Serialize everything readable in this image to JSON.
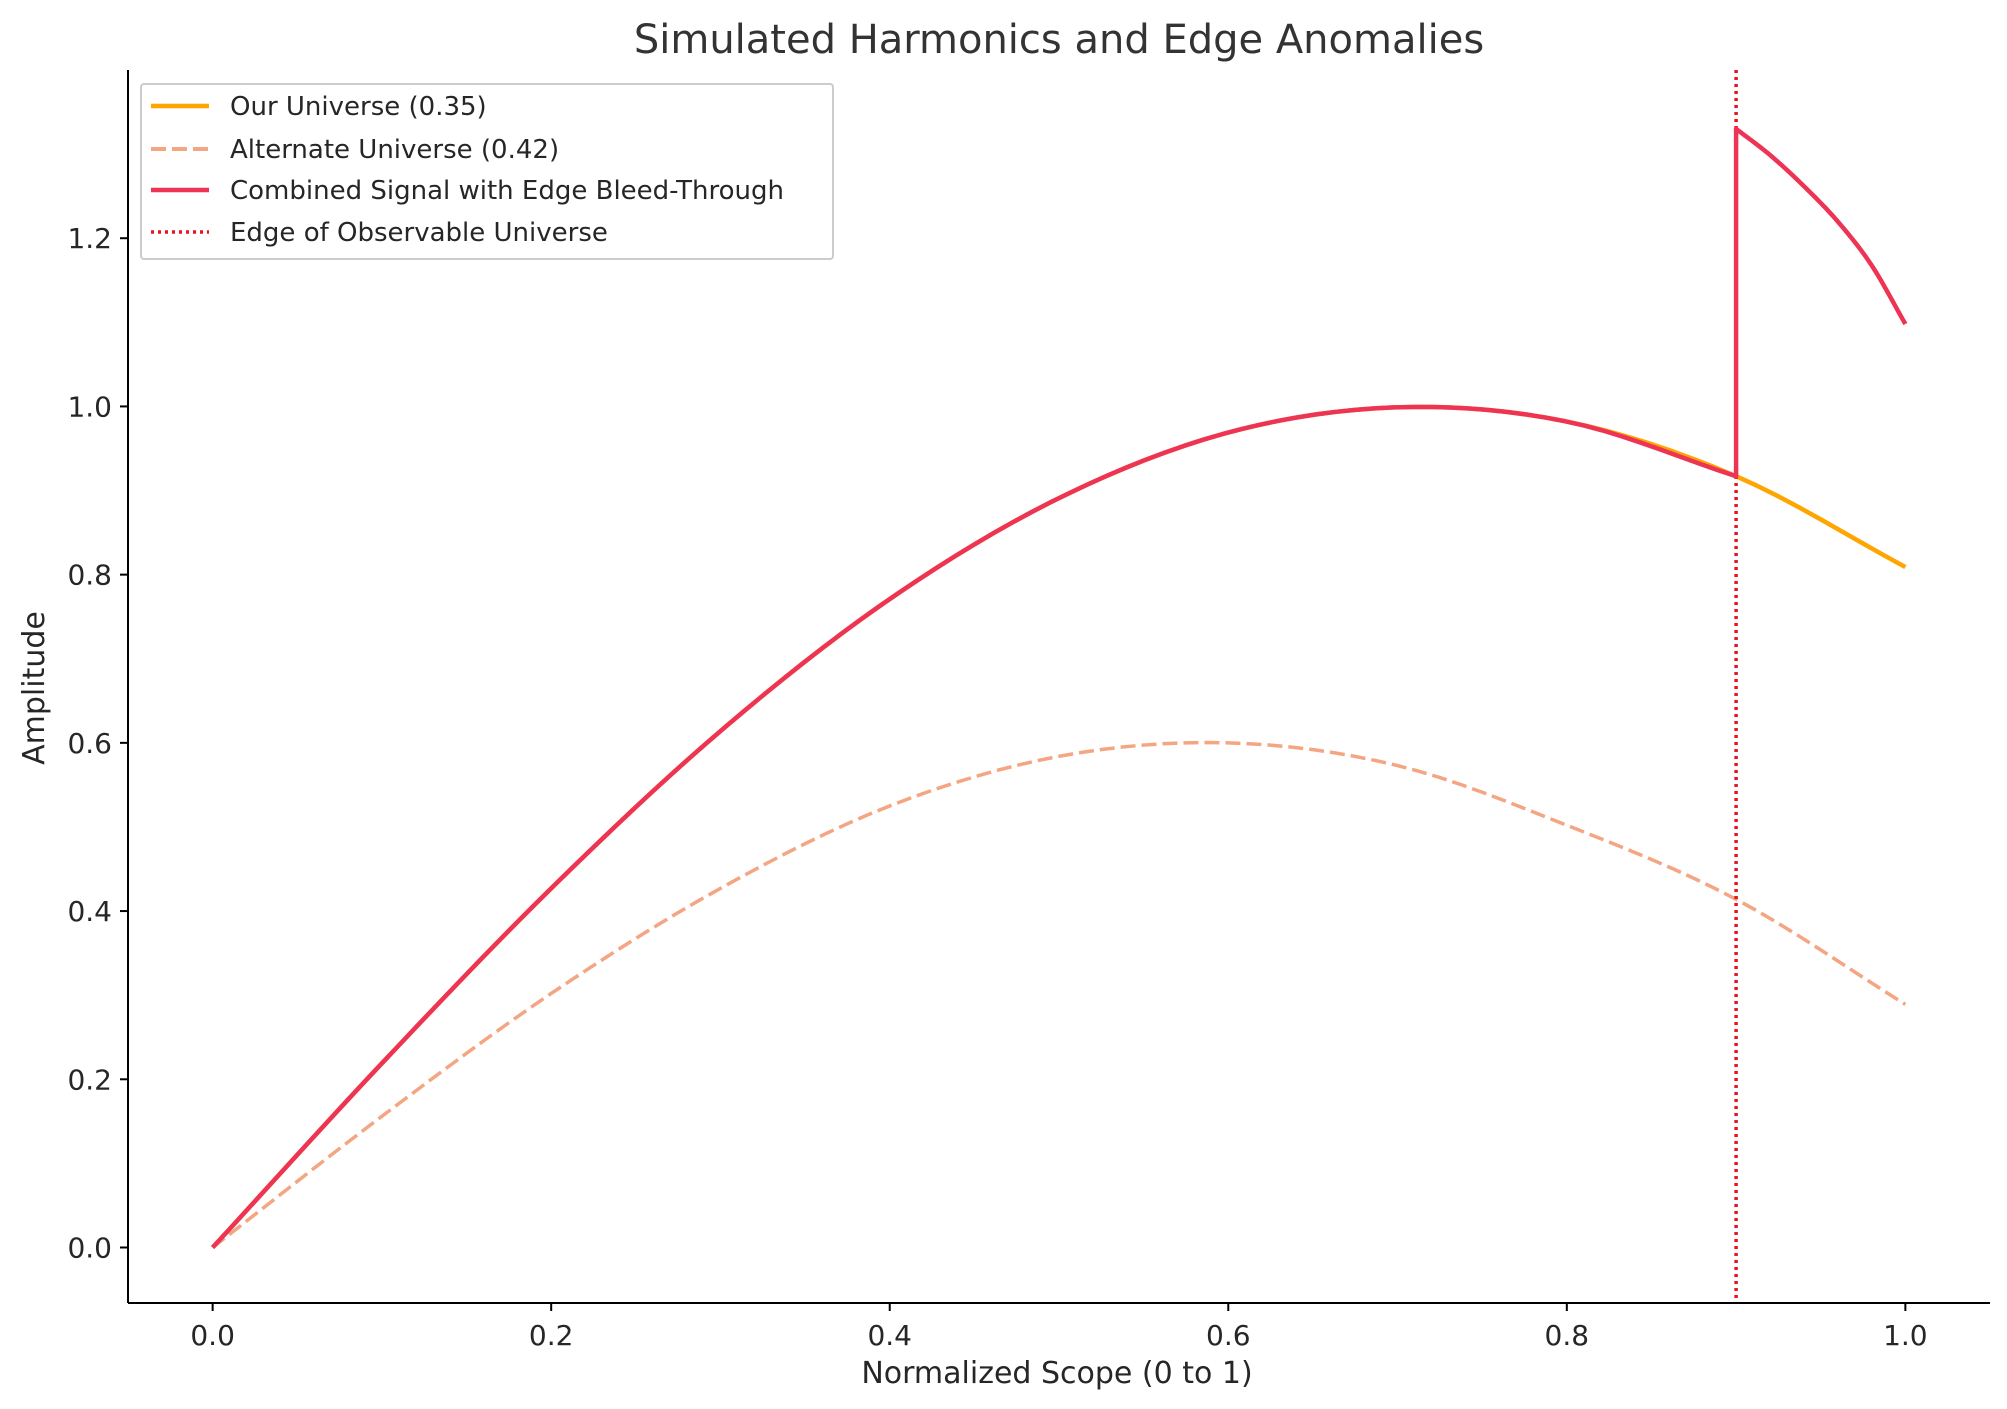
{
  "chart_data": {
    "type": "line",
    "title": "Simulated Harmonics and Edge Anomalies",
    "xlabel": "Normalized Scope (0 to 1)",
    "ylabel": "Amplitude",
    "xlim": [
      -0.05,
      1.05
    ],
    "ylim": [
      -0.066,
      1.4
    ],
    "x_ticks": [
      0.0,
      0.2,
      0.4,
      0.6,
      0.8,
      1.0
    ],
    "x_tick_labels": [
      "0.0",
      "0.2",
      "0.4",
      "0.6",
      "0.8",
      "1.0"
    ],
    "y_ticks": [
      0.0,
      0.2,
      0.4,
      0.6,
      0.8,
      1.0,
      1.2
    ],
    "y_tick_labels": [
      "0.0",
      "0.2",
      "0.4",
      "0.6",
      "0.8",
      "1.0",
      "1.2"
    ],
    "grid": false,
    "legend_position": "top-left",
    "series": [
      {
        "name": "Our Universe (0.35)",
        "color": "#FFA500",
        "style": "solid",
        "x": [
          0.0,
          0.1,
          0.2,
          0.3,
          0.4,
          0.5,
          0.6,
          0.7,
          0.8,
          0.9,
          1.0
        ],
        "y": [
          0.0,
          0.219,
          0.427,
          0.614,
          0.771,
          0.891,
          0.969,
          0.999,
          0.982,
          0.917,
          0.809
        ]
      },
      {
        "name": "Alternate Universe (0.42)",
        "color": "#F4A582",
        "style": "dashed",
        "x": [
          0.0,
          0.1,
          0.2,
          0.3,
          0.4,
          0.5,
          0.6,
          0.7,
          0.8,
          0.9,
          1.0
        ],
        "y": [
          0.0,
          0.156,
          0.302,
          0.427,
          0.525,
          0.584,
          0.6,
          0.573,
          0.502,
          0.414,
          0.289
        ]
      },
      {
        "name": "Combined Signal with Edge Bleed-Through",
        "color": "#EE3454",
        "style": "solid",
        "x": [
          0.0,
          0.1,
          0.2,
          0.3,
          0.4,
          0.5,
          0.6,
          0.7,
          0.8,
          0.9,
          0.9,
          0.92,
          0.94,
          0.96,
          0.98,
          1.0
        ],
        "y": [
          0.0,
          0.219,
          0.427,
          0.614,
          0.771,
          0.891,
          0.969,
          0.999,
          0.982,
          0.917,
          1.33,
          1.299,
          1.262,
          1.22,
          1.168,
          1.098
        ]
      }
    ],
    "vline": {
      "name": "Edge of Observable Universe",
      "x": 0.9,
      "color": "#E8141E",
      "style": "dotted"
    }
  }
}
